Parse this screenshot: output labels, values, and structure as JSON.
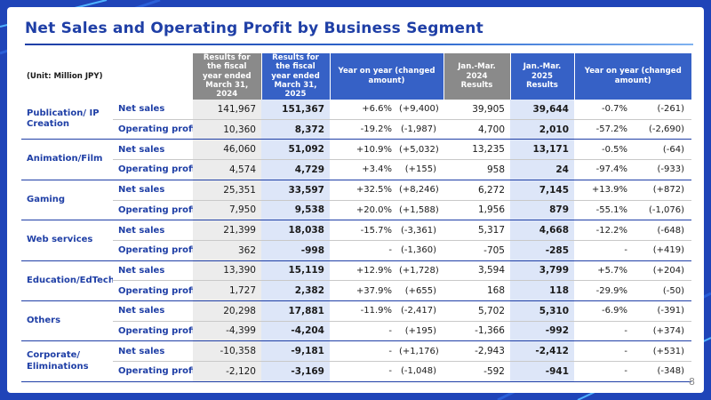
{
  "title": "Net Sales and Operating Profit by Business Segment",
  "page_number": "8",
  "unit_label": "(Unit: Million JPY)",
  "headers": {
    "fy2024": "Results for the fiscal year ended March 31, 2024",
    "fy2025": "Results for the fiscal year ended March 31, 2025",
    "yoy_fy": "Year on year (changed amount)",
    "q2024": "Jan.-Mar. 2024 Results",
    "q2025": "Jan.-Mar. 2025 Results",
    "yoy_q": "Year on year (changed amount)"
  },
  "rows": [
    {
      "segment": "Publication/ IP Creation",
      "metric": "Net sales",
      "fy2024": "141,967",
      "fy2025": "151,367",
      "fy_pct": "+6.6%",
      "fy_chg": "(+9,400)",
      "q2024": "39,905",
      "q2025": "39,644",
      "q_pct": "-0.7%",
      "q_chg": "(-261)"
    },
    {
      "segment": "",
      "metric": "Operating profit",
      "fy2024": "10,360",
      "fy2025": "8,372",
      "fy_pct": "-19.2%",
      "fy_chg": "(-1,987)",
      "q2024": "4,700",
      "q2025": "2,010",
      "q_pct": "-57.2%",
      "q_chg": "(-2,690)"
    },
    {
      "segment": "Animation/Film",
      "metric": "Net sales",
      "fy2024": "46,060",
      "fy2025": "51,092",
      "fy_pct": "+10.9%",
      "fy_chg": "(+5,032)",
      "q2024": "13,235",
      "q2025": "13,171",
      "q_pct": "-0.5%",
      "q_chg": "(-64)"
    },
    {
      "segment": "",
      "metric": "Operating profit",
      "fy2024": "4,574",
      "fy2025": "4,729",
      "fy_pct": "+3.4%",
      "fy_chg": "(+155)",
      "q2024": "958",
      "q2025": "24",
      "q_pct": "-97.4%",
      "q_chg": "(-933)"
    },
    {
      "segment": "Gaming",
      "metric": "Net sales",
      "fy2024": "25,351",
      "fy2025": "33,597",
      "fy_pct": "+32.5%",
      "fy_chg": "(+8,246)",
      "q2024": "6,272",
      "q2025": "7,145",
      "q_pct": "+13.9%",
      "q_chg": "(+872)"
    },
    {
      "segment": "",
      "metric": "Operating profit",
      "fy2024": "7,950",
      "fy2025": "9,538",
      "fy_pct": "+20.0%",
      "fy_chg": "(+1,588)",
      "q2024": "1,956",
      "q2025": "879",
      "q_pct": "-55.1%",
      "q_chg": "(-1,076)"
    },
    {
      "segment": "Web services",
      "metric": "Net sales",
      "fy2024": "21,399",
      "fy2025": "18,038",
      "fy_pct": "-15.7%",
      "fy_chg": "(-3,361)",
      "q2024": "5,317",
      "q2025": "4,668",
      "q_pct": "-12.2%",
      "q_chg": "(-648)"
    },
    {
      "segment": "",
      "metric": "Operating profit",
      "fy2024": "362",
      "fy2025": "-998",
      "fy_pct": "-",
      "fy_chg": "(-1,360)",
      "q2024": "-705",
      "q2025": "-285",
      "q_pct": "-",
      "q_chg": "(+419)"
    },
    {
      "segment": "Education/EdTech",
      "metric": "Net sales",
      "fy2024": "13,390",
      "fy2025": "15,119",
      "fy_pct": "+12.9%",
      "fy_chg": "(+1,728)",
      "q2024": "3,594",
      "q2025": "3,799",
      "q_pct": "+5.7%",
      "q_chg": "(+204)"
    },
    {
      "segment": "",
      "metric": "Operating profit",
      "fy2024": "1,727",
      "fy2025": "2,382",
      "fy_pct": "+37.9%",
      "fy_chg": "(+655)",
      "q2024": "168",
      "q2025": "118",
      "q_pct": "-29.9%",
      "q_chg": "(-50)"
    },
    {
      "segment": "Others",
      "metric": "Net sales",
      "fy2024": "20,298",
      "fy2025": "17,881",
      "fy_pct": "-11.9%",
      "fy_chg": "(-2,417)",
      "q2024": "5,702",
      "q2025": "5,310",
      "q_pct": "-6.9%",
      "q_chg": "(-391)"
    },
    {
      "segment": "",
      "metric": "Operating profit",
      "fy2024": "-4,399",
      "fy2025": "-4,204",
      "fy_pct": "-",
      "fy_chg": "(+195)",
      "q2024": "-1,366",
      "q2025": "-992",
      "q_pct": "-",
      "q_chg": "(+374)"
    },
    {
      "segment": "Corporate/ Eliminations",
      "metric": "Net sales",
      "fy2024": "-10,358",
      "fy2025": "-9,181",
      "fy_pct": "-",
      "fy_chg": "(+1,176)",
      "q2024": "-2,943",
      "q2025": "-2,412",
      "q_pct": "-",
      "q_chg": "(+531)"
    },
    {
      "segment": "",
      "metric": "Operating profit",
      "fy2024": "-2,120",
      "fy2025": "-3,169",
      "fy_pct": "-",
      "fy_chg": "(-1,048)",
      "q2024": "-592",
      "q2025": "-941",
      "q_pct": "-",
      "q_chg": "(-348)"
    }
  ],
  "colors": {
    "title": "#1f3fa6",
    "header_gray": "#8a8a8a",
    "header_blue": "#3661c6",
    "background": "#1f44b8"
  }
}
